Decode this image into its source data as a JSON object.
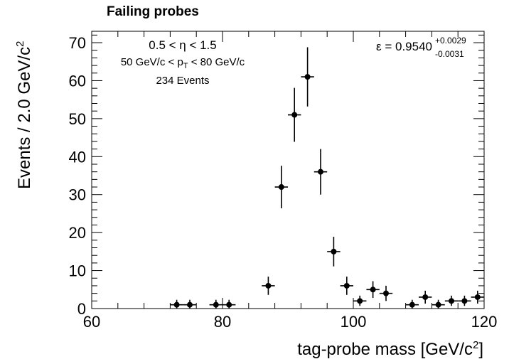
{
  "chart_data": {
    "type": "scatter",
    "title": "Failing probes",
    "xlabel": "tag-probe mass [GeV/c²]",
    "ylabel": "Events / 2.0 GeV/c²",
    "xlim": [
      60,
      120
    ],
    "ylim": [
      0,
      73
    ],
    "x_ticks": [
      60,
      80,
      100,
      120
    ],
    "y_ticks": [
      0,
      10,
      20,
      30,
      40,
      50,
      60,
      70
    ],
    "bin_width": 2,
    "grid": false,
    "annotations": {
      "eta_range": "0.5 < η < 1.5",
      "pt_range": "50 GeV/c < p_T < 80 GeV/c",
      "events": "234 Events",
      "efficiency": "ε = 0.9540",
      "eff_err_up": "+0.0029",
      "eff_err_down": "-0.0031"
    },
    "points": [
      {
        "x": 73,
        "y": 1,
        "err_lo": 0.9,
        "err_hi": 1.3
      },
      {
        "x": 75,
        "y": 1,
        "err_lo": 0.9,
        "err_hi": 1.3
      },
      {
        "x": 79,
        "y": 1,
        "err_lo": 0.9,
        "err_hi": 1.3
      },
      {
        "x": 81,
        "y": 1,
        "err_lo": 0.9,
        "err_hi": 1.3
      },
      {
        "x": 87,
        "y": 6,
        "err_lo": 2.4,
        "err_hi": 2.4
      },
      {
        "x": 89,
        "y": 32,
        "err_lo": 5.6,
        "err_hi": 5.6
      },
      {
        "x": 91,
        "y": 51,
        "err_lo": 7.1,
        "err_hi": 7.1
      },
      {
        "x": 93,
        "y": 61,
        "err_lo": 7.8,
        "err_hi": 7.8
      },
      {
        "x": 95,
        "y": 36,
        "err_lo": 6.0,
        "err_hi": 6.0
      },
      {
        "x": 97,
        "y": 15,
        "err_lo": 3.9,
        "err_hi": 3.9
      },
      {
        "x": 99,
        "y": 6,
        "err_lo": 2.4,
        "err_hi": 2.4
      },
      {
        "x": 101,
        "y": 2,
        "err_lo": 1.3,
        "err_hi": 1.4
      },
      {
        "x": 103,
        "y": 5,
        "err_lo": 2.2,
        "err_hi": 2.2
      },
      {
        "x": 105,
        "y": 4,
        "err_lo": 2.0,
        "err_hi": 2.0
      },
      {
        "x": 109,
        "y": 1,
        "err_lo": 0.9,
        "err_hi": 1.3
      },
      {
        "x": 111,
        "y": 3,
        "err_lo": 1.7,
        "err_hi": 1.7
      },
      {
        "x": 113,
        "y": 1,
        "err_lo": 0.9,
        "err_hi": 1.3
      },
      {
        "x": 115,
        "y": 2,
        "err_lo": 1.3,
        "err_hi": 1.4
      },
      {
        "x": 117,
        "y": 2,
        "err_lo": 1.3,
        "err_hi": 1.4
      },
      {
        "x": 119,
        "y": 3,
        "err_lo": 1.7,
        "err_hi": 1.7
      }
    ]
  }
}
